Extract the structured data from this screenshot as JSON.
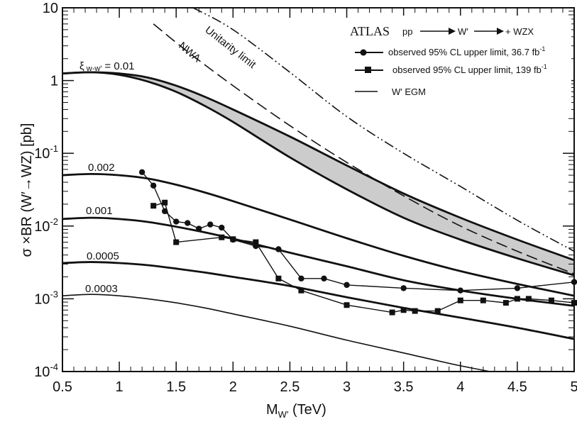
{
  "chart_data": {
    "type": "line",
    "xlabel": "M",
    "xlabel_sub": "W′",
    "xlabel_unit": " (TeV)",
    "ylabel": "σ ×BR (W′→WZ) [pb]",
    "xlim": [
      0.5,
      5
    ],
    "ylim": [
      0.0001,
      10
    ],
    "yscale": "log",
    "x_ticks": [
      {
        "value": 0.5,
        "label": "0.5"
      },
      {
        "value": 1,
        "label": "1"
      },
      {
        "value": 1.5,
        "label": "1.5"
      },
      {
        "value": 2,
        "label": "2"
      },
      {
        "value": 2.5,
        "label": "2.5"
      },
      {
        "value": 3,
        "label": "3"
      },
      {
        "value": 3.5,
        "label": "3.5"
      },
      {
        "value": 4,
        "label": "4"
      },
      {
        "value": 4.5,
        "label": "4.5"
      },
      {
        "value": 5,
        "label": "5"
      }
    ],
    "y_ticks": [
      {
        "value": 10,
        "base": "10",
        "exp": ""
      },
      {
        "value": 1,
        "base": "1",
        "exp": ""
      },
      {
        "value": 0.1,
        "base": "10",
        "exp": "-1"
      },
      {
        "value": 0.01,
        "base": "10",
        "exp": "-2"
      },
      {
        "value": 0.001,
        "base": "10",
        "exp": "-3"
      },
      {
        "value": 0.0001,
        "base": "10",
        "exp": "-4"
      }
    ],
    "legend": {
      "position": "top-right",
      "title_experiment": "ATLAS",
      "title_process": "pp",
      "title_mid": "W′",
      "title_final": "+ WZX",
      "entries": [
        {
          "marker": "circle",
          "label": "observed 95% CL upper limit,  36.7 fb",
          "sup": "-1"
        },
        {
          "marker": "square",
          "label": "observed 95% CL upper limit, 139 fb",
          "sup": "-1"
        },
        {
          "marker": "line",
          "label": "W′ EGM"
        }
      ]
    },
    "curve_labels": {
      "xi_prefix": "ξ",
      "xi_sub": " w-w′",
      "xi_value": "= 0.01",
      "c002": "0.002",
      "c001": "0.001",
      "c0005": "0.0005",
      "c0003": "0.0003",
      "unitarity": "Unitarity limit",
      "nwa": "NWA"
    },
    "series": [
      {
        "name": "observed 95% CL upper limit, 36.7 fb-1",
        "marker": "circle",
        "x": [
          1.2,
          1.3,
          1.4,
          1.5,
          1.6,
          1.7,
          1.8,
          1.9,
          2.0,
          2.2,
          2.4,
          2.6,
          2.8,
          3.0,
          3.5,
          4.0,
          4.5,
          5.0
        ],
        "y": [
          0.055,
          0.036,
          0.016,
          0.0115,
          0.011,
          0.0092,
          0.0105,
          0.0095,
          0.0065,
          0.0053,
          0.0048,
          0.0019,
          0.0019,
          0.00155,
          0.0014,
          0.0013,
          0.0014,
          0.0017
        ]
      },
      {
        "name": "observed 95% CL upper limit, 139 fb-1",
        "marker": "square",
        "x": [
          1.3,
          1.4,
          1.5,
          1.9,
          2.0,
          2.2,
          2.4,
          2.6,
          3.0,
          3.4,
          3.5,
          3.6,
          3.8,
          4.0,
          4.2,
          4.4,
          4.5,
          4.6,
          4.8,
          5.0
        ],
        "y": [
          0.019,
          0.021,
          0.006,
          0.007,
          0.0066,
          0.006,
          0.0019,
          0.0013,
          0.00082,
          0.00065,
          0.0007,
          0.00068,
          0.00068,
          0.00095,
          0.00095,
          0.00088,
          0.001,
          0.001,
          0.00095,
          0.00088
        ]
      },
      {
        "name": "0.002",
        "x": [
          0.5,
          0.75,
          1.0,
          1.25,
          1.5,
          1.75,
          2.0,
          2.5,
          3.0,
          3.5,
          4.0,
          4.5,
          5.0
        ],
        "y": [
          0.05,
          0.052,
          0.05,
          0.045,
          0.037,
          0.029,
          0.022,
          0.0123,
          0.0068,
          0.0039,
          0.0024,
          0.0016,
          0.0011
        ]
      },
      {
        "name": "0.001",
        "x": [
          0.5,
          0.75,
          1.0,
          1.25,
          1.5,
          1.75,
          2.0,
          2.5,
          3.0,
          3.5,
          4.0,
          4.5,
          5.0
        ],
        "y": [
          0.0125,
          0.013,
          0.0125,
          0.0114,
          0.0098,
          0.0082,
          0.0067,
          0.0043,
          0.0028,
          0.0018,
          0.0013,
          0.001,
          0.0008
        ]
      },
      {
        "name": "0.0005",
        "x": [
          0.5,
          0.75,
          1.0,
          1.25,
          1.5,
          1.75,
          2.0,
          2.5,
          3.0,
          3.5,
          4.0,
          4.5,
          5.0
        ],
        "y": [
          0.0031,
          0.0032,
          0.0031,
          0.0029,
          0.0026,
          0.0023,
          0.002,
          0.0015,
          0.00105,
          0.00075,
          0.00055,
          0.0004,
          0.00028
        ]
      },
      {
        "name": "0.0003",
        "x": [
          0.5,
          0.75,
          1.0,
          1.25,
          1.5,
          1.75,
          2.0,
          2.5,
          3.0,
          3.5,
          4.0,
          4.5,
          5.0
        ],
        "y": [
          0.0011,
          0.00115,
          0.0011,
          0.001,
          0.00088,
          0.00075,
          0.00062,
          0.00042,
          0.00027,
          0.00018,
          0.00012,
          8.5e-05,
          6e-05
        ]
      },
      {
        "name": "ξ w-w′ = 0.01 (upper)",
        "x": [
          0.5,
          0.75,
          1.0,
          1.25,
          1.5,
          1.75,
          2.0,
          2.5,
          3.0,
          3.5,
          4.0,
          4.5,
          5.0
        ],
        "y": [
          1.25,
          1.3,
          1.25,
          1.1,
          0.85,
          0.6,
          0.4,
          0.17,
          0.068,
          0.028,
          0.013,
          0.0065,
          0.0034
        ]
      },
      {
        "name": "ξ w-w′ = 0.01 (lower)",
        "x": [
          0.5,
          0.75,
          1.0,
          1.25,
          1.5,
          1.75,
          2.0,
          2.5,
          3.0,
          3.5,
          4.0,
          4.5,
          5.0
        ],
        "y": [
          1.25,
          1.3,
          1.2,
          0.97,
          0.7,
          0.45,
          0.27,
          0.088,
          0.032,
          0.013,
          0.0065,
          0.0036,
          0.0021
        ]
      },
      {
        "name": "NWA",
        "style": "dashed",
        "x": [
          1.3,
          1.6,
          2.0,
          2.5,
          3.0,
          3.5,
          4.0,
          4.5,
          5.0
        ],
        "y": [
          6.0,
          2.5,
          0.85,
          0.24,
          0.075,
          0.026,
          0.01,
          0.0045,
          0.0022
        ]
      },
      {
        "name": "Unitarity limit",
        "style": "dashdot",
        "x": [
          1.65,
          2.0,
          2.5,
          3.0,
          3.5,
          4.0,
          4.5,
          5.0
        ],
        "y": [
          10,
          5.0,
          1.3,
          0.32,
          0.1,
          0.035,
          0.012,
          0.0045
        ]
      }
    ]
  }
}
